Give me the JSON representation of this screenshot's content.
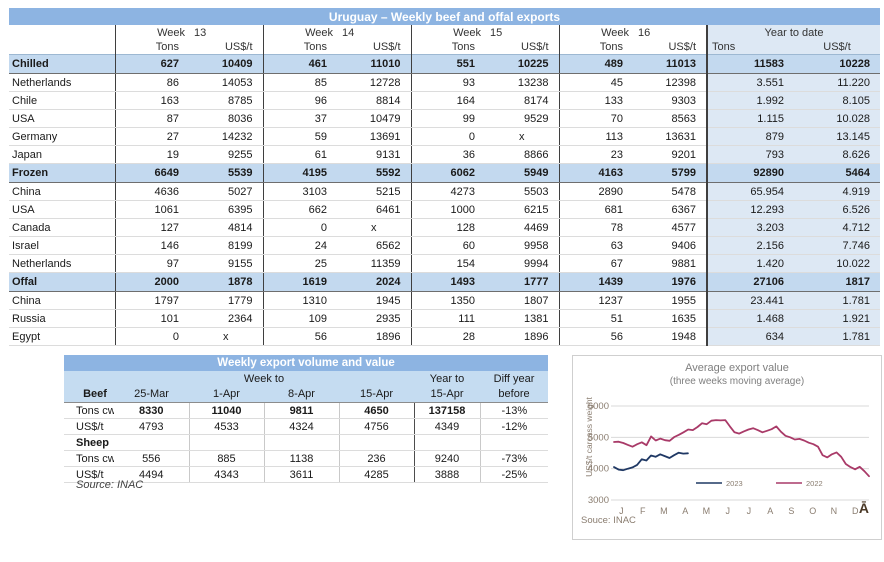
{
  "colors": {
    "header_bar": "#8db4e2",
    "section_row": "#c3d9ef",
    "ytd_block": "#dde8f4",
    "series_2023": "#1f3864",
    "series_2022": "#a93a68"
  },
  "main_table": {
    "title": "Uruguay – Weekly beef and offal exports",
    "week_headers": [
      {
        "label": "Week",
        "num": "13"
      },
      {
        "label": "Week",
        "num": "14"
      },
      {
        "label": "Week",
        "num": "15"
      },
      {
        "label": "Week",
        "num": "16"
      }
    ],
    "ytd_title": "Year to date",
    "unit_tons": "Tons",
    "unit_usdt": "US$/t",
    "sections": [
      {
        "name": "Chilled",
        "totals": [
          "627",
          "10409",
          "461",
          "11010",
          "551",
          "10225",
          "489",
          "11013",
          "11583",
          "10228"
        ],
        "rows": [
          {
            "name": "Netherlands",
            "values": [
              "86",
              "14053",
              "85",
              "12728",
              "93",
              "13238",
              "45",
              "12398",
              "3.551",
              "11.220"
            ]
          },
          {
            "name": "Chile",
            "values": [
              "163",
              "8785",
              "96",
              "8814",
              "164",
              "8174",
              "133",
              "9303",
              "1.992",
              "8.105"
            ]
          },
          {
            "name": "USA",
            "values": [
              "87",
              "8036",
              "37",
              "10479",
              "99",
              "9529",
              "70",
              "8563",
              "1.115",
              "10.028"
            ]
          },
          {
            "name": "Germany",
            "values": [
              "27",
              "14232",
              "59",
              "13691",
              "0",
              "x",
              "113",
              "13631",
              "879",
              "13.145"
            ]
          },
          {
            "name": "Japan",
            "values": [
              "19",
              "9255",
              "61",
              "9131",
              "36",
              "8866",
              "23",
              "9201",
              "793",
              "8.626"
            ]
          }
        ]
      },
      {
        "name": "Frozen",
        "totals": [
          "6649",
          "5539",
          "4195",
          "5592",
          "6062",
          "5949",
          "4163",
          "5799",
          "92890",
          "5464"
        ],
        "rows": [
          {
            "name": "China",
            "values": [
              "4636",
              "5027",
              "3103",
              "5215",
              "4273",
              "5503",
              "2890",
              "5478",
              "65.954",
              "4.919"
            ]
          },
          {
            "name": "USA",
            "values": [
              "1061",
              "6395",
              "662",
              "6461",
              "1000",
              "6215",
              "681",
              "6367",
              "12.293",
              "6.526"
            ]
          },
          {
            "name": "Canada",
            "values": [
              "127",
              "4814",
              "0",
              "x",
              "128",
              "4469",
              "78",
              "4577",
              "3.203",
              "4.712"
            ]
          },
          {
            "name": "Israel",
            "values": [
              "146",
              "8199",
              "24",
              "6562",
              "60",
              "9958",
              "63",
              "9406",
              "2.156",
              "7.746"
            ]
          },
          {
            "name": "Netherlands",
            "values": [
              "97",
              "9155",
              "25",
              "11359",
              "154",
              "9994",
              "67",
              "9881",
              "1.420",
              "10.022"
            ]
          }
        ]
      },
      {
        "name": "Offal",
        "totals": [
          "2000",
          "1878",
          "1619",
          "2024",
          "1493",
          "1777",
          "1439",
          "1976",
          "27106",
          "1817"
        ],
        "rows": [
          {
            "name": "China",
            "values": [
              "1797",
              "1779",
              "1310",
              "1945",
              "1350",
              "1807",
              "1237",
              "1955",
              "23.441",
              "1.781"
            ]
          },
          {
            "name": "Russia",
            "values": [
              "101",
              "2364",
              "109",
              "2935",
              "111",
              "1381",
              "51",
              "1635",
              "1.468",
              "1.921"
            ]
          },
          {
            "name": "Egypt",
            "values": [
              "0",
              "x",
              "56",
              "1896",
              "28",
              "1896",
              "56",
              "1948",
              "634",
              "1.781"
            ]
          }
        ]
      }
    ]
  },
  "weekly_table": {
    "title": "Weekly export volume and value",
    "week_to": "Week to",
    "year_to": "Year to",
    "diff_year": "Diff year",
    "beef_label": "Beef",
    "date_cols": [
      "25-Mar",
      "1-Apr",
      "8-Apr",
      "15-Apr"
    ],
    "year_date": "15-Apr",
    "before": "before",
    "beef_rows": [
      {
        "label": "Tons cwt",
        "values": [
          "8330",
          "11040",
          "9811",
          "4650",
          "137158",
          "-13%"
        ],
        "bold": true
      },
      {
        "label": "US$/t",
        "values": [
          "4793",
          "4533",
          "4324",
          "4756",
          "4349",
          "-12%"
        ],
        "bold": false
      }
    ],
    "sheep_label": "Sheep",
    "sheep_rows": [
      {
        "label": "Tons cwt",
        "values": [
          "556",
          "885",
          "1138",
          "236",
          "9240",
          "-73%"
        ],
        "bold": false
      },
      {
        "label": "US$/t",
        "values": [
          "4494",
          "4343",
          "3611",
          "4285",
          "3888",
          "-25%"
        ],
        "bold": false
      }
    ],
    "source": "Source: INAC"
  },
  "chart_data": {
    "type": "line",
    "title": "Average export value",
    "subtitle": "(three weeks moving average)",
    "ylabel": "US$/t carcass weight",
    "ylim": [
      3000,
      6000
    ],
    "yticks": [
      6000,
      5000,
      4000,
      3000
    ],
    "month_labels": [
      "J",
      "F",
      "M",
      "A",
      "M",
      "J",
      "J",
      "A",
      "S",
      "O",
      "N",
      "D"
    ],
    "legend_position": "bottom-inside",
    "source": "Souce: INAC",
    "corner_mark": "Ā",
    "series": [
      {
        "name": "2023",
        "color": "#1f3864",
        "span": 0.29,
        "values": [
          4050,
          3970,
          3950,
          4000,
          4040,
          4120,
          4300,
          4260,
          4420,
          4380,
          4460,
          4400,
          4340,
          4430,
          4510,
          4480,
          4490
        ]
      },
      {
        "name": "2022",
        "color": "#a93a68",
        "span": 1.0,
        "values": [
          4850,
          4860,
          4820,
          4760,
          4700,
          4780,
          4840,
          4750,
          5030,
          4900,
          4960,
          4910,
          4890,
          5010,
          5080,
          5160,
          5250,
          5230,
          5330,
          5450,
          5420,
          5530,
          5550,
          5540,
          5550,
          5350,
          5160,
          5120,
          5190,
          5250,
          5290,
          5230,
          5160,
          5210,
          5260,
          5350,
          5180,
          5050,
          5000,
          4930,
          4950,
          4900,
          4830,
          4780,
          4700,
          4430,
          4360,
          4460,
          4520,
          4380,
          4150,
          4050,
          3980,
          4060,
          3920,
          3760
        ]
      }
    ]
  }
}
